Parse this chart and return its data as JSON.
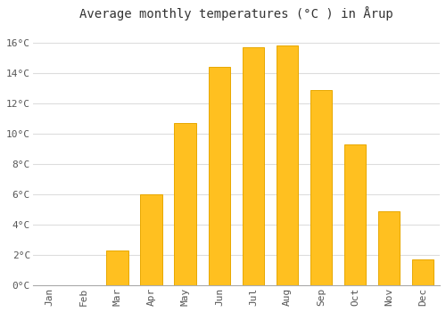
{
  "months": [
    "Jan",
    "Feb",
    "Mar",
    "Apr",
    "May",
    "Jun",
    "Jul",
    "Aug",
    "Sep",
    "Oct",
    "Nov",
    "Dec"
  ],
  "values": [
    0.0,
    0.0,
    2.3,
    6.0,
    10.7,
    14.4,
    15.7,
    15.8,
    12.9,
    9.3,
    4.9,
    1.7
  ],
  "bar_color": "#FFC020",
  "bar_edge_color": "#E8A800",
  "title": "Average monthly temperatures (°C ) in Årup",
  "ylabel_ticks": [
    "0°C",
    "2°C",
    "4°C",
    "6°C",
    "8°C",
    "10°C",
    "12°C",
    "14°C",
    "16°C"
  ],
  "ytick_values": [
    0,
    2,
    4,
    6,
    8,
    10,
    12,
    14,
    16
  ],
  "ylim": [
    0,
    17
  ],
  "background_color": "#ffffff",
  "grid_color": "#dddddd",
  "title_fontsize": 10,
  "tick_fontsize": 8,
  "font_family": "monospace"
}
